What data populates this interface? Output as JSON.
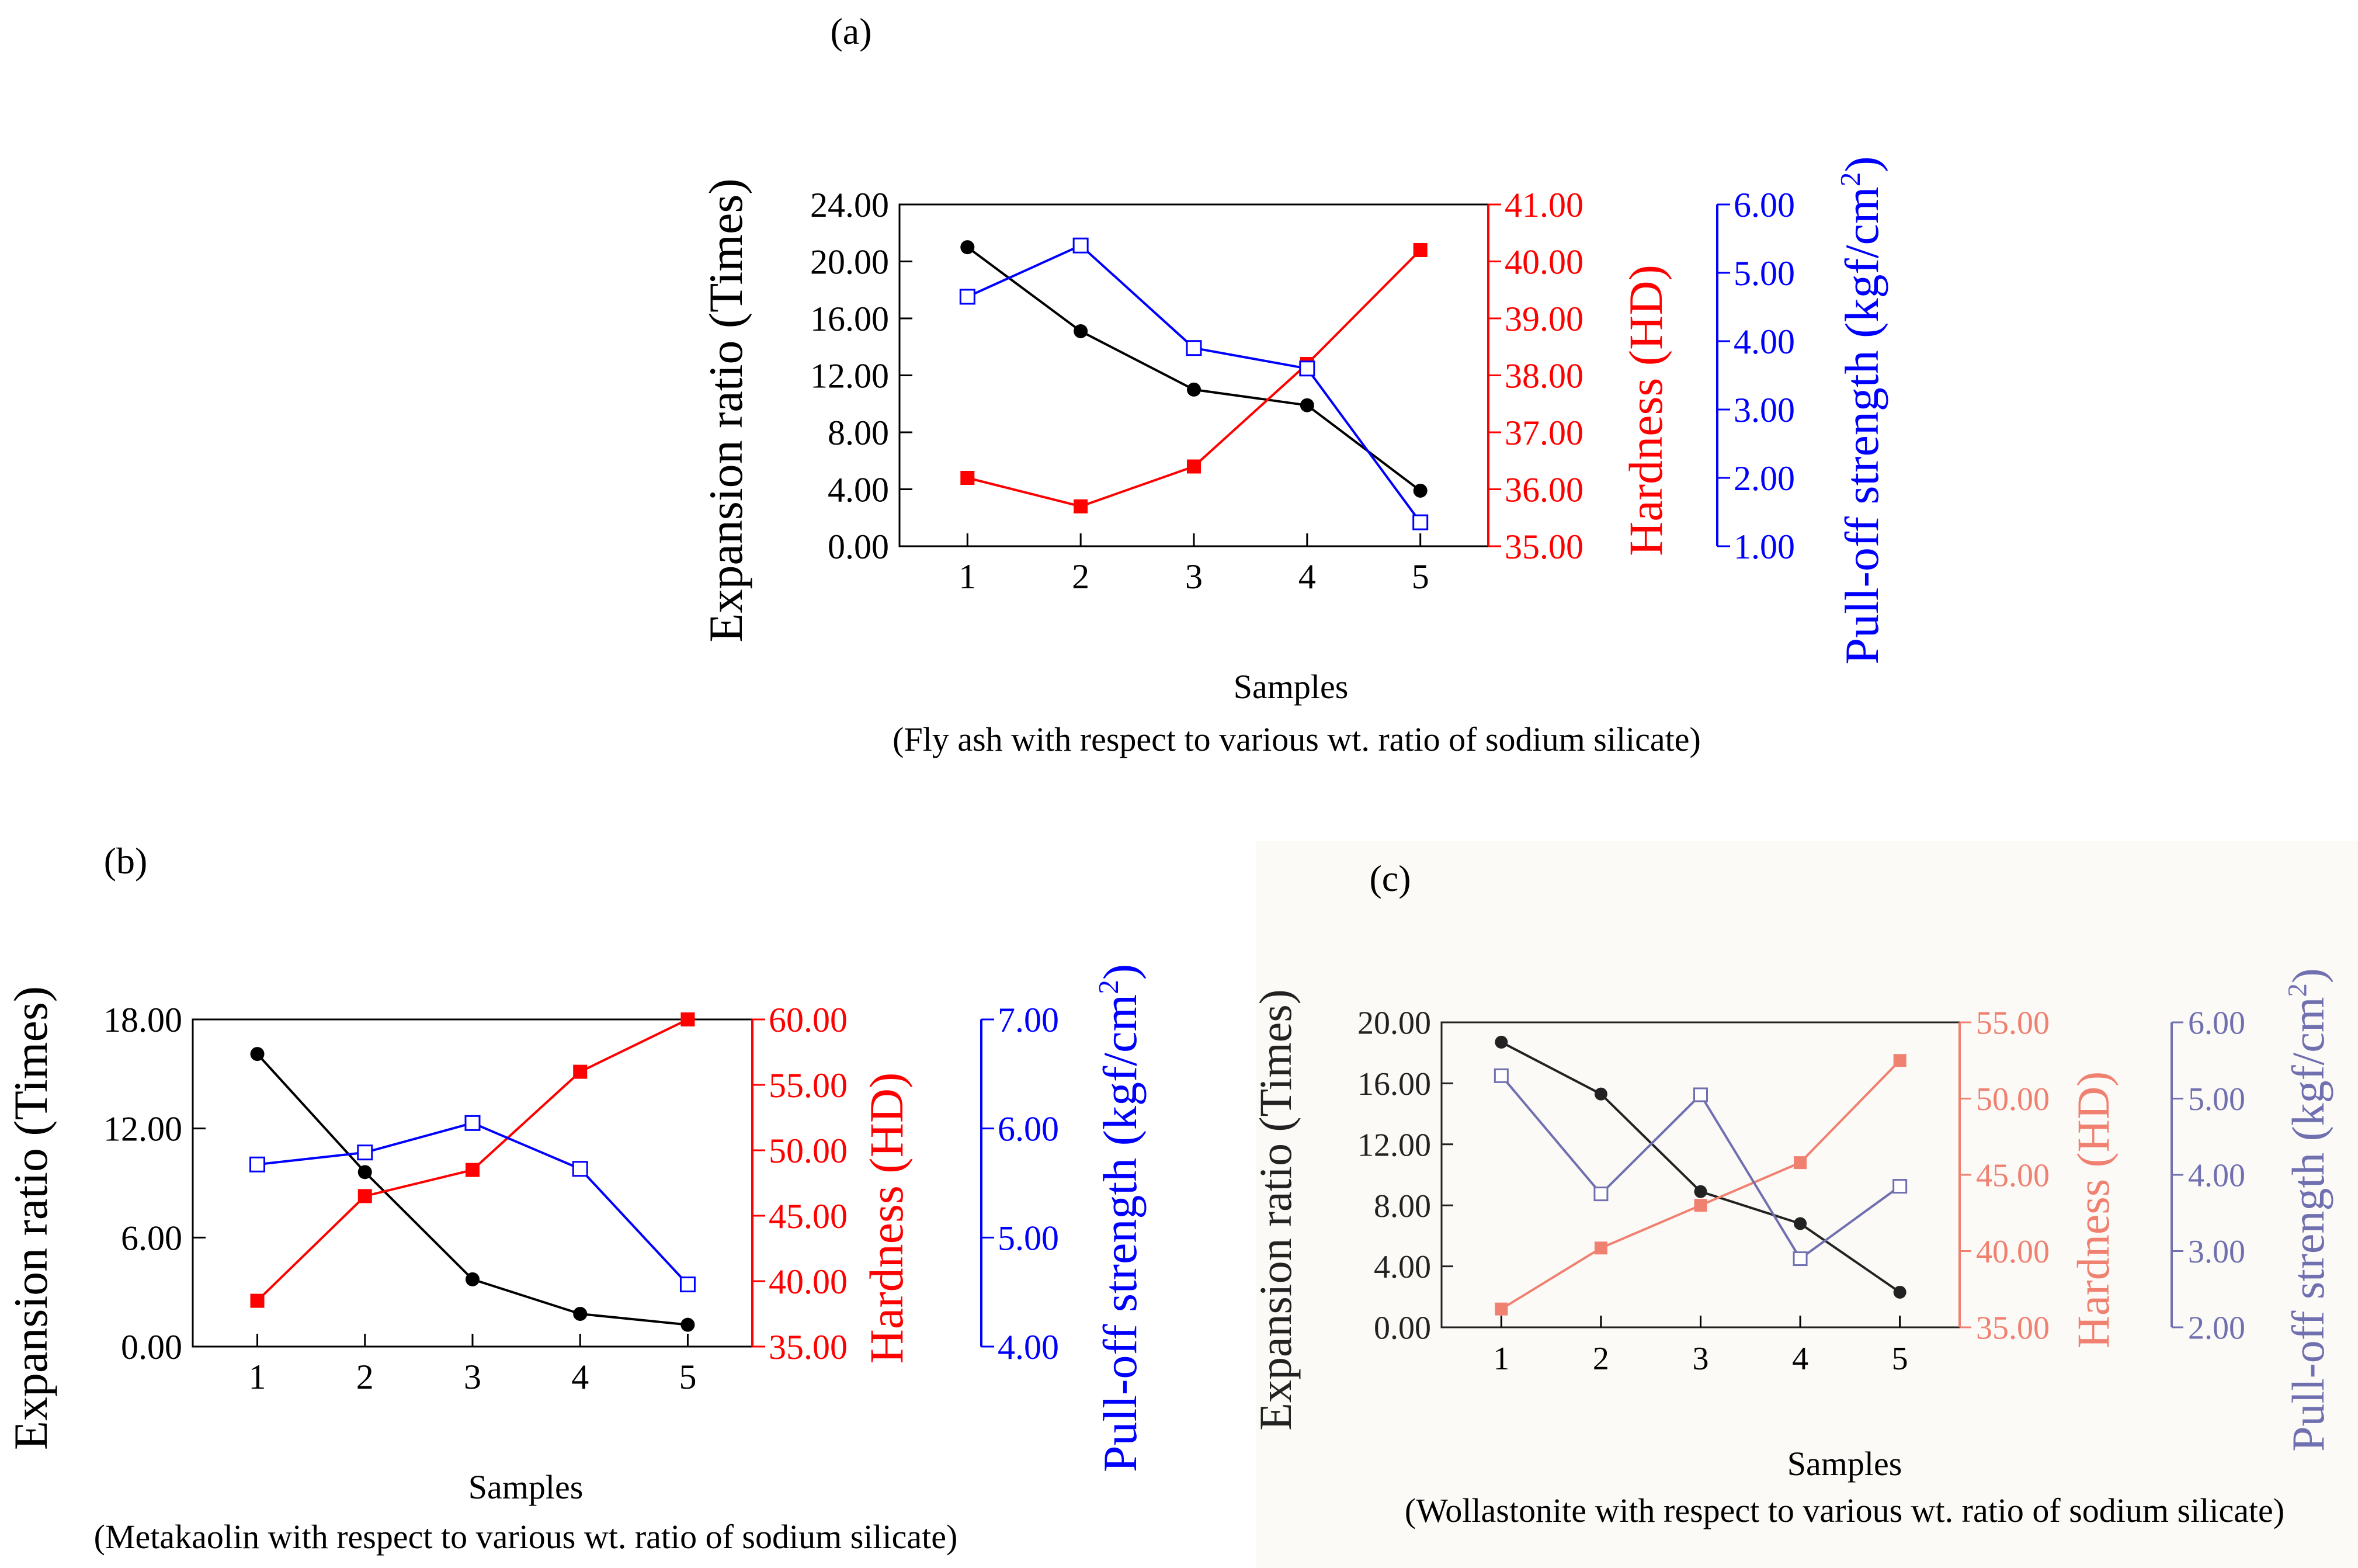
{
  "chart_data": [
    {
      "type": "line",
      "panel_label": "(a)",
      "xlabel": "Samples",
      "caption": "(Fly ash with respect to various wt. ratio of sodium silicate)",
      "categories": [
        "1",
        "2",
        "3",
        "4",
        "5"
      ],
      "y_left": {
        "label": "Expansion ratio (Times)",
        "range": [
          0,
          24
        ],
        "ticks": [
          "0.00",
          "4.00",
          "8.00",
          "12.00",
          "16.00",
          "20.00",
          "24.00"
        ],
        "color": "#000000"
      },
      "y_mid": {
        "label": "Hardness (HD)",
        "range": [
          35,
          41
        ],
        "ticks": [
          "35.00",
          "36.00",
          "37.00",
          "38.00",
          "39.00",
          "40.00",
          "41.00"
        ],
        "color": "#ff0000"
      },
      "y_right": {
        "label": "Pull-off strength (kgf/cm",
        "label_sup": "2",
        "label_end": ")",
        "range": [
          1,
          6
        ],
        "ticks": [
          "1.00",
          "2.00",
          "3.00",
          "4.00",
          "5.00",
          "6.00"
        ],
        "color": "#0000ff"
      },
      "series": [
        {
          "axis": "left",
          "color": "#000000",
          "marker": "circle",
          "values": [
            21.0,
            15.1,
            11.0,
            9.9,
            3.9
          ]
        },
        {
          "axis": "mid",
          "color": "#ff0000",
          "marker": "square",
          "values": [
            36.2,
            35.7,
            36.4,
            38.2,
            40.2
          ]
        },
        {
          "axis": "right",
          "color": "#0000ff",
          "marker": "square-open",
          "values": [
            4.65,
            5.4,
            3.9,
            3.6,
            1.35
          ]
        }
      ]
    },
    {
      "type": "line",
      "panel_label": "(b)",
      "xlabel": "Samples",
      "caption": "(Metakaolin with respect to various wt. ratio of sodium silicate)",
      "categories": [
        "1",
        "2",
        "3",
        "4",
        "5"
      ],
      "y_left": {
        "label": "Expansion ratio (Times)",
        "range": [
          0,
          18
        ],
        "ticks": [
          "0.00",
          "6.00",
          "12.00",
          "18.00"
        ],
        "color": "#000000"
      },
      "y_mid": {
        "label": "Hardness (HD)",
        "range": [
          35,
          60
        ],
        "ticks": [
          "35.00",
          "40.00",
          "45.00",
          "50.00",
          "55.00",
          "60.00"
        ],
        "color": "#ff0000"
      },
      "y_right": {
        "label": "Pull-off strength (kgf/cm",
        "label_sup": "2",
        "label_end": ")",
        "range": [
          4,
          7
        ],
        "ticks": [
          "4.00",
          "5.00",
          "6.00",
          "7.00"
        ],
        "color": "#0000ff"
      },
      "series": [
        {
          "axis": "left",
          "color": "#000000",
          "marker": "circle",
          "values": [
            16.1,
            9.6,
            3.7,
            1.8,
            1.2
          ]
        },
        {
          "axis": "mid",
          "color": "#ff0000",
          "marker": "square",
          "values": [
            38.5,
            46.5,
            48.5,
            56.0,
            60.0
          ]
        },
        {
          "axis": "right",
          "color": "#0000ff",
          "marker": "square-open",
          "values": [
            5.67,
            5.78,
            6.05,
            5.63,
            4.57
          ]
        }
      ]
    },
    {
      "type": "line",
      "panel_label": "(c)",
      "xlabel": "Samples",
      "caption": "(Wollastonite with respect to various wt. ratio of sodium silicate)",
      "categories": [
        "1",
        "2",
        "3",
        "4",
        "5"
      ],
      "y_left": {
        "label": "Expansion ratio (Times)",
        "range": [
          0,
          20
        ],
        "ticks": [
          "0.00",
          "4.00",
          "8.00",
          "12.00",
          "16.00",
          "20.00"
        ],
        "color": "#222222"
      },
      "y_mid": {
        "label": "Hardness (HD)",
        "range": [
          35,
          55
        ],
        "ticks": [
          "35.00",
          "40.00",
          "45.00",
          "50.00",
          "55.00"
        ],
        "color": "#f08070"
      },
      "y_right": {
        "label": "Pull-off strength (kgf/cm",
        "label_sup": "2",
        "label_end": ")",
        "range": [
          2,
          6
        ],
        "ticks": [
          "2.00",
          "3.00",
          "4.00",
          "5.00",
          "6.00"
        ],
        "color": "#7070b0"
      },
      "series": [
        {
          "axis": "left",
          "color": "#222222",
          "marker": "circle",
          "values": [
            18.7,
            15.3,
            8.9,
            6.8,
            2.3
          ]
        },
        {
          "axis": "mid",
          "color": "#f08070",
          "marker": "square",
          "values": [
            36.2,
            40.2,
            43.0,
            45.8,
            52.5
          ]
        },
        {
          "axis": "right",
          "color": "#7070b0",
          "marker": "square-open",
          "values": [
            5.3,
            3.75,
            5.05,
            2.9,
            3.85
          ]
        }
      ]
    }
  ]
}
